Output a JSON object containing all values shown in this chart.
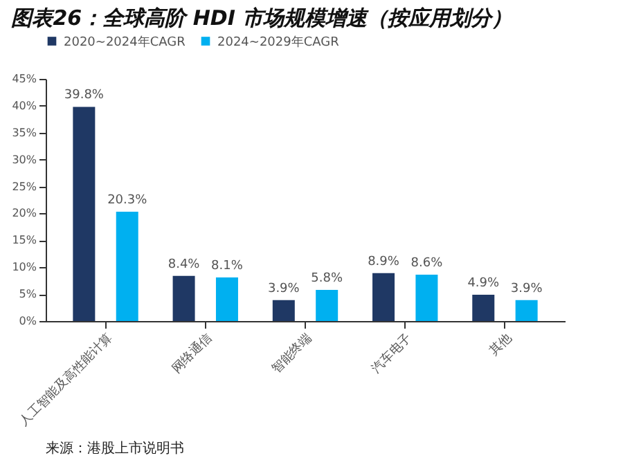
{
  "chart_data": {
    "type": "bar",
    "title": "图表26：全球高阶 HDI 市场规模增速（按应用划分）",
    "categories": [
      "人工智能及高性能计算",
      "网络通信",
      "智能终端",
      "汽车电子",
      "其他"
    ],
    "series": [
      {
        "name": "2020~2024年CAGR",
        "color": "#1f3864",
        "values": [
          39.8,
          8.4,
          3.9,
          8.9,
          4.9
        ],
        "value_labels": [
          "39.8%",
          "8.4%",
          "3.9%",
          "8.9%",
          "4.9%"
        ]
      },
      {
        "name": "2024~2029年CAGR",
        "color": "#00b0f0",
        "values": [
          20.3,
          8.1,
          5.8,
          8.6,
          3.9
        ],
        "value_labels": [
          "20.3%",
          "8.1%",
          "5.8%",
          "8.6%",
          "3.9%"
        ]
      }
    ],
    "ylim": [
      0,
      45
    ],
    "yticks": [
      {
        "value": 0,
        "label": "0%"
      },
      {
        "value": 5,
        "label": "5%"
      },
      {
        "value": 10,
        "label": "10%"
      },
      {
        "value": 15,
        "label": "15%"
      },
      {
        "value": 20,
        "label": "20%"
      },
      {
        "value": 25,
        "label": "25%"
      },
      {
        "value": 30,
        "label": "30%"
      },
      {
        "value": 35,
        "label": "35%"
      },
      {
        "value": 40,
        "label": "40%"
      },
      {
        "value": 45,
        "label": "45%"
      }
    ],
    "legend": "top",
    "grid": false,
    "annotations": [
      "来源：港股上市说明书"
    ]
  }
}
